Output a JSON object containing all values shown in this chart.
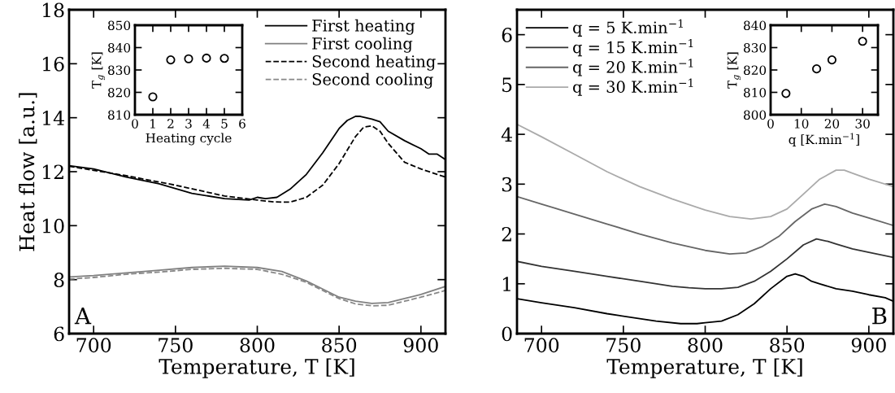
{
  "chart_data": [
    {
      "type": "line",
      "ylabel": "Heat flow [a.u.]",
      "xlabel": "Temperature, T [K]",
      "xlim": [
        685,
        915
      ],
      "xticks": [
        700,
        750,
        800,
        850,
        900
      ],
      "ylim": [
        6,
        18
      ],
      "yticks": [
        6,
        8,
        10,
        12,
        14,
        16,
        18
      ],
      "legend": "top right",
      "annotations": [
        "A"
      ],
      "series": [
        {
          "name": "First heating",
          "color": "#000000",
          "line_style": "solid",
          "x": [
            685,
            700,
            720,
            740,
            760,
            780,
            795,
            800,
            805,
            812,
            820,
            830,
            840,
            850,
            855,
            860,
            863,
            870,
            875,
            880,
            890,
            900,
            905,
            910,
            915
          ],
          "values": [
            12.22,
            12.1,
            11.8,
            11.55,
            11.2,
            11.0,
            10.95,
            11.05,
            11.0,
            11.05,
            11.35,
            11.9,
            12.7,
            13.6,
            13.9,
            14.05,
            14.05,
            13.95,
            13.85,
            13.5,
            13.15,
            12.85,
            12.65,
            12.65,
            12.45
          ]
        },
        {
          "name": "First cooling",
          "color": "#808080",
          "line_style": "solid",
          "x": [
            685,
            700,
            720,
            740,
            760,
            780,
            800,
            815,
            830,
            840,
            850,
            860,
            870,
            880,
            890,
            900,
            915
          ],
          "values": [
            8.1,
            8.15,
            8.25,
            8.35,
            8.45,
            8.5,
            8.45,
            8.3,
            7.95,
            7.65,
            7.35,
            7.2,
            7.12,
            7.15,
            7.3,
            7.45,
            7.75
          ]
        },
        {
          "name": "Second heating",
          "color": "#000000",
          "line_style": "dashed",
          "x": [
            685,
            700,
            720,
            750,
            780,
            800,
            810,
            820,
            830,
            840,
            850,
            860,
            865,
            870,
            875,
            880,
            890,
            900,
            910,
            915
          ],
          "values": [
            12.2,
            12.05,
            11.85,
            11.5,
            11.1,
            10.95,
            10.88,
            10.87,
            11.05,
            11.5,
            12.3,
            13.3,
            13.65,
            13.7,
            13.5,
            13.05,
            12.35,
            12.1,
            11.9,
            11.8
          ]
        },
        {
          "name": "Second cooling",
          "color": "#888888",
          "line_style": "dashed",
          "x": [
            685,
            700,
            720,
            740,
            760,
            780,
            800,
            815,
            830,
            840,
            850,
            860,
            870,
            880,
            890,
            900,
            915
          ],
          "values": [
            8.02,
            8.08,
            8.2,
            8.28,
            8.38,
            8.42,
            8.38,
            8.2,
            7.9,
            7.6,
            7.3,
            7.1,
            7.03,
            7.05,
            7.2,
            7.35,
            7.6
          ]
        }
      ]
    },
    {
      "type": "scatter",
      "xlabel": "Heating cycle",
      "ylabel": "T$_{g}$ [K]",
      "xlim": [
        0,
        6
      ],
      "xticks": [
        0,
        1,
        2,
        3,
        4,
        5,
        6
      ],
      "ylim": [
        810,
        850
      ],
      "yticks": [
        810,
        820,
        830,
        840,
        850
      ],
      "marker": "circle",
      "series": [
        {
          "color": "#000000",
          "x": [
            1,
            2,
            3,
            4,
            5
          ],
          "values": [
            818,
            834.5,
            835,
            835.3,
            835.2
          ]
        }
      ]
    },
    {
      "type": "line",
      "xlabel": "Temperature, T [K]",
      "xlim": [
        685,
        915
      ],
      "xticks": [
        700,
        750,
        800,
        850,
        900
      ],
      "ylim": [
        0,
        6.5
      ],
      "yticks": [
        0,
        1,
        2,
        3,
        4,
        5,
        6
      ],
      "legend": "top left",
      "annotations": [
        "B"
      ],
      "series": [
        {
          "name": "q = 5 K.min$^{−1}$",
          "color": "#000000",
          "x": [
            685,
            700,
            720,
            740,
            760,
            770,
            785,
            795,
            800,
            810,
            820,
            830,
            840,
            850,
            855,
            860,
            865,
            870,
            880,
            890,
            900,
            910,
            915
          ],
          "values": [
            0.7,
            0.62,
            0.52,
            0.4,
            0.3,
            0.25,
            0.2,
            0.2,
            0.22,
            0.25,
            0.38,
            0.6,
            0.9,
            1.15,
            1.2,
            1.15,
            1.05,
            1.0,
            0.9,
            0.85,
            0.78,
            0.72,
            0.65
          ]
        },
        {
          "name": "q = 15 K.min$^{−1}$",
          "color": "#333333",
          "x": [
            685,
            700,
            720,
            740,
            760,
            780,
            790,
            800,
            810,
            820,
            830,
            840,
            850,
            860,
            868,
            875,
            880,
            890,
            900,
            915
          ],
          "values": [
            1.45,
            1.35,
            1.25,
            1.15,
            1.05,
            0.95,
            0.92,
            0.9,
            0.9,
            0.93,
            1.05,
            1.25,
            1.5,
            1.78,
            1.9,
            1.85,
            1.8,
            1.7,
            1.63,
            1.53
          ]
        },
        {
          "name": "q = 20 K.min$^{−1}$",
          "color": "#666666",
          "x": [
            685,
            700,
            720,
            740,
            760,
            780,
            800,
            815,
            825,
            835,
            845,
            855,
            865,
            873,
            880,
            890,
            900,
            915
          ],
          "values": [
            2.75,
            2.6,
            2.4,
            2.2,
            2.0,
            1.82,
            1.67,
            1.6,
            1.62,
            1.75,
            1.95,
            2.25,
            2.5,
            2.6,
            2.55,
            2.42,
            2.32,
            2.17
          ]
        },
        {
          "name": "q = 30 K.min$^{−1}$",
          "color": "#aaaaaa",
          "x": [
            685,
            700,
            720,
            740,
            760,
            780,
            800,
            815,
            828,
            840,
            850,
            860,
            870,
            880,
            885,
            890,
            900,
            915
          ],
          "values": [
            4.2,
            3.95,
            3.6,
            3.25,
            2.95,
            2.7,
            2.48,
            2.35,
            2.3,
            2.35,
            2.5,
            2.8,
            3.1,
            3.28,
            3.28,
            3.22,
            3.1,
            2.95
          ]
        }
      ]
    },
    {
      "type": "scatter",
      "xlabel": "q [K.min$^{−1}$]",
      "ylabel": "T$_{g}$ [K]",
      "xlim": [
        0,
        35
      ],
      "xticks": [
        0,
        10,
        20,
        30
      ],
      "ylim": [
        800,
        840
      ],
      "yticks": [
        800,
        810,
        820,
        830,
        840
      ],
      "marker": "circle",
      "series": [
        {
          "color": "#000000",
          "x": [
            5,
            15,
            20,
            30
          ],
          "values": [
            809.5,
            820.5,
            824.5,
            832.8
          ]
        }
      ]
    }
  ]
}
